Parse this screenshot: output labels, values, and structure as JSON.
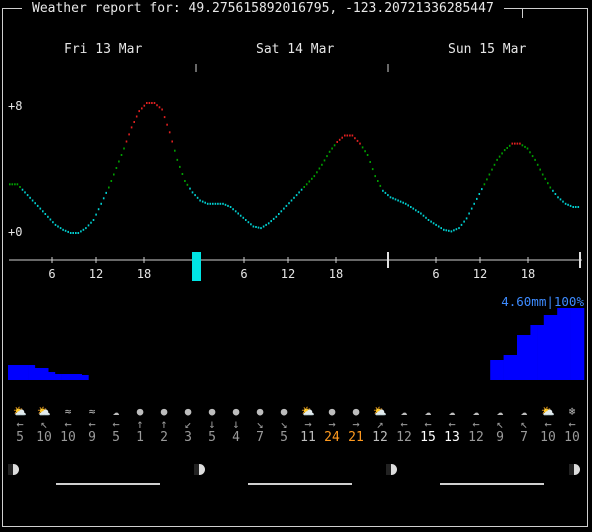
{
  "header": {
    "title": "Weather report for: 49.275615892016795, -123.20721336285447"
  },
  "days": [
    "Fri 13 Mar",
    "Sat 14 Mar",
    "Sun 15 Mar"
  ],
  "temperature": {
    "ymax_label": "+8",
    "ymin_label": "+0"
  },
  "hour_ticks": [
    "6",
    "12",
    "18",
    "6",
    "12",
    "18",
    "6",
    "12",
    "18"
  ],
  "rain": {
    "summary": "4.60mm|100%"
  },
  "forecast": [
    {
      "icon": "cloud-sun-icon",
      "glyph": "⛅",
      "arrow": "←",
      "speed": "5",
      "color": "#9a9a9a"
    },
    {
      "icon": "cloud-sun-icon",
      "glyph": "⛅",
      "arrow": "↖",
      "speed": "10",
      "color": "#9a9a9a"
    },
    {
      "icon": "fog-icon",
      "glyph": "≈",
      "arrow": "←",
      "speed": "10",
      "color": "#9a9a9a"
    },
    {
      "icon": "fog-icon",
      "glyph": "≈",
      "arrow": "←",
      "speed": "9",
      "color": "#9a9a9a"
    },
    {
      "icon": "cloud-icon",
      "glyph": "☁",
      "arrow": "←",
      "speed": "5",
      "color": "#9a9a9a"
    },
    {
      "icon": "clear-night-icon",
      "glyph": "●",
      "arrow": "↑",
      "speed": "1",
      "color": "#9a9a9a"
    },
    {
      "icon": "clear-night-icon",
      "glyph": "●",
      "arrow": "↑",
      "speed": "2",
      "color": "#9a9a9a"
    },
    {
      "icon": "clear-night-icon",
      "glyph": "●",
      "arrow": "↙",
      "speed": "3",
      "color": "#9a9a9a"
    },
    {
      "icon": "clear-night-icon",
      "glyph": "●",
      "arrow": "↓",
      "speed": "5",
      "color": "#9a9a9a"
    },
    {
      "icon": "clear-night-icon",
      "glyph": "●",
      "arrow": "↓",
      "speed": "4",
      "color": "#9a9a9a"
    },
    {
      "icon": "clear-night-icon",
      "glyph": "●",
      "arrow": "↘",
      "speed": "7",
      "color": "#9a9a9a"
    },
    {
      "icon": "clear-night-icon",
      "glyph": "●",
      "arrow": "↘",
      "speed": "5",
      "color": "#9a9a9a"
    },
    {
      "icon": "partly-cloudy-icon",
      "glyph": "⛅",
      "arrow": "→",
      "speed": "11",
      "color": "#bdbdbd"
    },
    {
      "icon": "clear-icon",
      "glyph": "●",
      "arrow": "→",
      "speed": "24",
      "color": "#ff9a1f"
    },
    {
      "icon": "clear-icon",
      "glyph": "●",
      "arrow": "→",
      "speed": "21",
      "color": "#ff9a1f"
    },
    {
      "icon": "partly-cloudy-icon",
      "glyph": "⛅",
      "arrow": "↗",
      "speed": "12",
      "color": "#bdbdbd"
    },
    {
      "icon": "cloud-icon",
      "glyph": "☁",
      "arrow": "←",
      "speed": "12",
      "color": "#9a9a9a"
    },
    {
      "icon": "cloud-icon",
      "glyph": "☁",
      "arrow": "←",
      "speed": "15",
      "color": "#ffffff"
    },
    {
      "icon": "cloud-icon",
      "glyph": "☁",
      "arrow": "←",
      "speed": "13",
      "color": "#ffffff"
    },
    {
      "icon": "cloud-icon",
      "glyph": "☁",
      "arrow": "←",
      "speed": "12",
      "color": "#9a9a9a"
    },
    {
      "icon": "cloud-icon",
      "glyph": "☁",
      "arrow": "↖",
      "speed": "9",
      "color": "#9a9a9a"
    },
    {
      "icon": "cloud-icon",
      "glyph": "☁",
      "arrow": "↖",
      "speed": "7",
      "color": "#9a9a9a"
    },
    {
      "icon": "cloud-rain-icon",
      "glyph": "⛅",
      "arrow": "←",
      "speed": "10",
      "color": "#9a9a9a"
    },
    {
      "icon": "snow-icon",
      "glyph": "❄",
      "arrow": "←",
      "speed": "10",
      "color": "#9a9a9a"
    }
  ],
  "chart_data": {
    "type": "line",
    "series": [
      {
        "values": [
          3,
          3,
          2.5,
          2,
          1.5,
          1,
          0.5,
          0.2,
          0,
          0,
          0.3,
          0.8,
          1.8,
          2.8,
          4,
          5.2,
          6.5,
          7.5,
          8,
          8,
          7.6,
          6.2,
          4.5,
          3.2,
          2.5,
          2,
          1.8,
          1.8,
          1.8,
          1.6,
          1.2,
          0.8,
          0.4,
          0.3,
          0.6,
          1,
          1.5,
          2,
          2.5,
          3,
          3.5,
          4.2,
          5,
          5.6,
          6,
          6,
          5.5,
          4.8,
          3.5,
          2.6,
          2.2,
          2,
          1.8,
          1.5,
          1.2,
          0.8,
          0.5,
          0.2,
          0.1,
          0.3,
          0.9,
          1.8,
          2.7,
          3.6,
          4.5,
          5.1,
          5.5,
          5.5,
          5.2,
          4.5,
          3.6,
          2.8,
          2.2,
          1.8,
          1.6,
          1.6
        ]
      }
    ],
    "ylim": [
      0,
      8
    ],
    "colors": {
      "low": "#00cfd0",
      "mid": "#00a000",
      "high": "#e02020",
      "rain": "#0000ff"
    },
    "rain_mm": [
      0.15,
      0.15,
      0.15,
      0.15,
      0.12,
      0.12,
      0.08,
      0.06,
      0.06,
      0.06,
      0.06,
      0.05,
      0,
      0,
      0,
      0,
      0,
      0,
      0,
      0,
      0,
      0,
      0,
      0,
      0,
      0,
      0,
      0,
      0,
      0,
      0,
      0,
      0,
      0,
      0,
      0,
      0,
      0,
      0,
      0,
      0,
      0,
      0,
      0,
      0,
      0,
      0,
      0,
      0,
      0,
      0,
      0,
      0,
      0,
      0,
      0,
      0,
      0,
      0,
      0,
      0,
      0,
      0,
      0,
      0,
      0,
      0,
      0,
      0,
      0,
      0,
      0,
      0.2,
      0.2,
      0.25,
      0.25,
      0.45,
      0.45,
      0.55,
      0.55,
      0.65,
      0.65,
      0.72,
      0.72,
      0.72,
      0.72
    ]
  }
}
